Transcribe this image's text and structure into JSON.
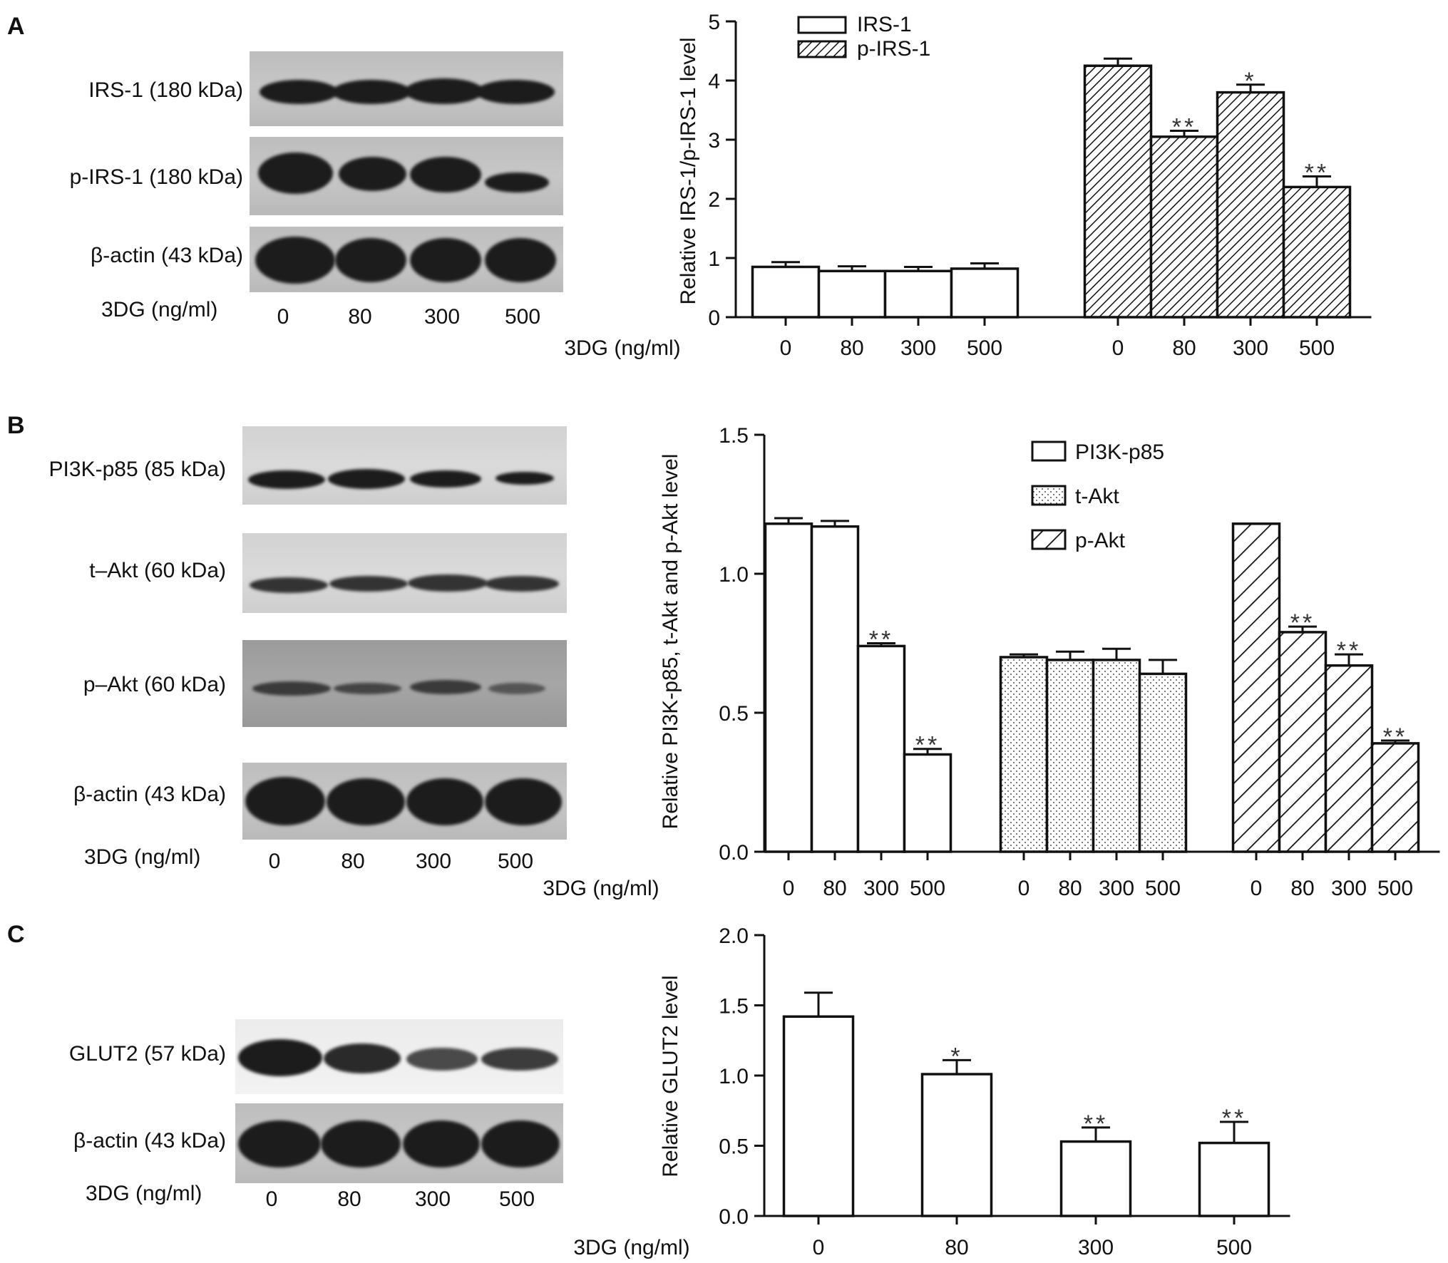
{
  "panels": [
    {
      "letter": "A",
      "blots": [
        "IRS-1 (180 kDa)",
        "p-IRS-1 (180 kDa)",
        "β-actin (43 kDa)"
      ],
      "dose_label": "3DG (ng/ml)",
      "lanes": [
        "0",
        "80",
        "300",
        "500"
      ]
    },
    {
      "letter": "B",
      "blots": [
        "PI3K-p85 (85 kDa)",
        "t–Akt (60 kDa)",
        "p–Akt (60 kDa)",
        "β-actin (43 kDa)"
      ],
      "dose_label": "3DG (ng/ml)",
      "lanes": [
        "0",
        "80",
        "300",
        "500"
      ]
    },
    {
      "letter": "C",
      "blots": [
        "GLUT2 (57 kDa)",
        "β-actin (43 kDa)"
      ],
      "dose_label": "3DG (ng/ml)",
      "lanes": [
        "0",
        "80",
        "300",
        "500"
      ]
    }
  ],
  "chart_data": [
    {
      "type": "bar",
      "ylabel": "Relative IRS-1/p-IRS-1 level",
      "xlabel": "3DG (ng/ml)",
      "ylim": [
        0,
        5
      ],
      "yticks": [
        "0",
        "1",
        "2",
        "3",
        "4",
        "5"
      ],
      "categories": [
        "0",
        "80",
        "300",
        "500"
      ],
      "legend_position": "top-left",
      "series": [
        {
          "name": "IRS-1",
          "pattern": "open",
          "values": [
            0.85,
            0.78,
            0.78,
            0.82
          ],
          "errors": [
            0.08,
            0.08,
            0.07,
            0.09
          ],
          "sig": [
            "",
            "",
            "",
            ""
          ]
        },
        {
          "name": "p-IRS-1",
          "pattern": "hatch",
          "values": [
            4.25,
            3.05,
            3.8,
            2.2
          ],
          "errors": [
            0.12,
            0.1,
            0.13,
            0.18
          ],
          "sig": [
            "",
            "**",
            "*",
            "**"
          ]
        }
      ]
    },
    {
      "type": "bar",
      "ylabel": "Relative PI3K-p85, t-Akt and p-Akt level",
      "xlabel": "3DG (ng/ml)",
      "ylim": [
        0,
        1.5
      ],
      "yticks": [
        "0.0",
        "0.5",
        "1.0",
        "1.5"
      ],
      "categories": [
        "0",
        "80",
        "300",
        "500"
      ],
      "legend_position": "top-right",
      "series": [
        {
          "name": "PI3K-p85",
          "pattern": "open",
          "values": [
            1.18,
            1.17,
            0.74,
            0.35
          ],
          "errors": [
            0.02,
            0.02,
            0.01,
            0.02
          ],
          "sig": [
            "",
            "",
            "**",
            "**"
          ]
        },
        {
          "name": "t-Akt",
          "pattern": "dots",
          "values": [
            0.7,
            0.69,
            0.69,
            0.64
          ],
          "errors": [
            0.01,
            0.03,
            0.04,
            0.05
          ],
          "sig": [
            "",
            "",
            "",
            ""
          ]
        },
        {
          "name": "p-Akt",
          "pattern": "hatch",
          "values": [
            1.18,
            0.79,
            0.67,
            0.39
          ],
          "errors": [
            0.0,
            0.02,
            0.04,
            0.01
          ],
          "sig": [
            "",
            "**",
            "**",
            "**"
          ]
        }
      ]
    },
    {
      "type": "bar",
      "ylabel": "Relative GLUT2 level",
      "xlabel": "3DG (ng/ml)",
      "ylim": [
        0,
        2.0
      ],
      "yticks": [
        "0.0",
        "0.5",
        "1.0",
        "1.5",
        "2.0"
      ],
      "categories": [
        "0",
        "80",
        "300",
        "500"
      ],
      "series": [
        {
          "name": "",
          "pattern": "open",
          "values": [
            1.42,
            1.01,
            0.53,
            0.52
          ],
          "errors": [
            0.17,
            0.1,
            0.1,
            0.15
          ],
          "sig": [
            "",
            "*",
            "**",
            "**"
          ]
        }
      ]
    }
  ]
}
